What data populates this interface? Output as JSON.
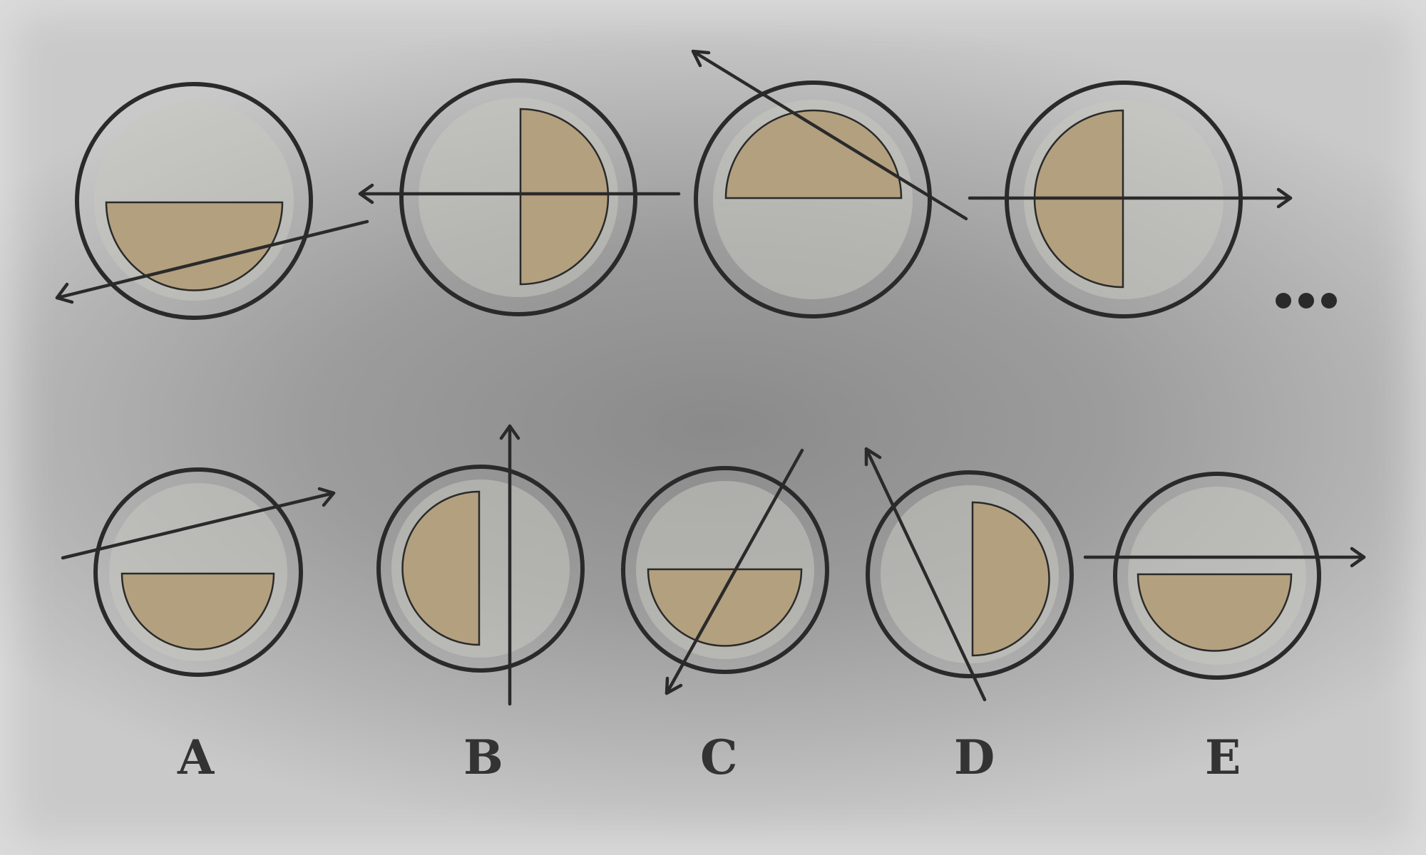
{
  "sequence": {
    "continuation": "..."
  },
  "options": [
    {
      "label": "A"
    },
    {
      "label": "B"
    },
    {
      "label": "C"
    },
    {
      "label": "D"
    },
    {
      "label": "E"
    }
  ],
  "colors": {
    "ring": "#2a2a2a",
    "semicircle_fill": "#b3a07f",
    "background": "#9c9c9c"
  }
}
